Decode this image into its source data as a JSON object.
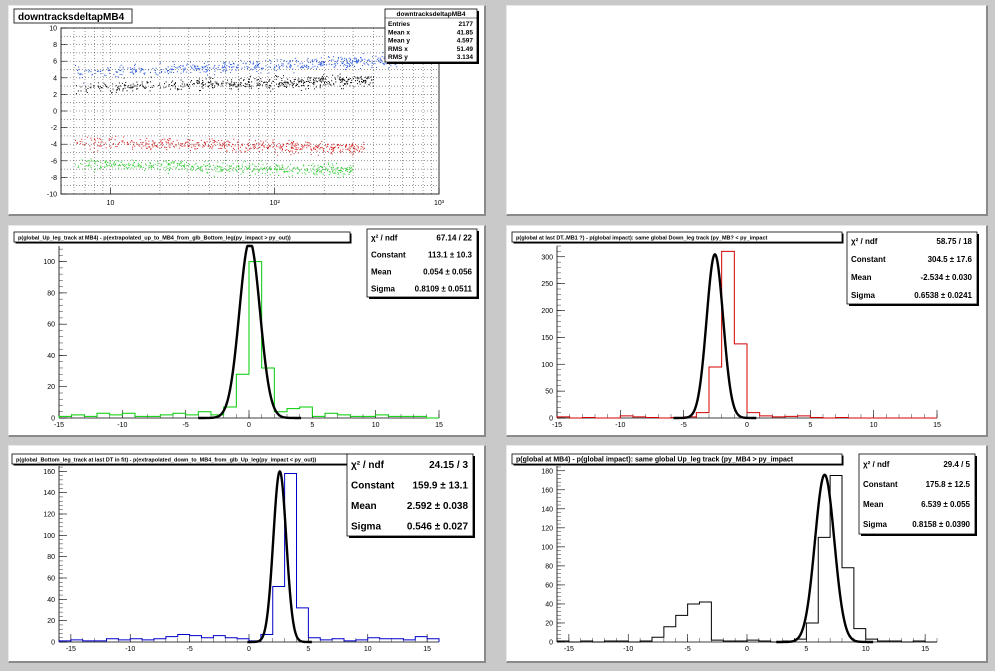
{
  "chart_data": [
    {
      "type": "scatter",
      "title": "downtracksdeltapMB4",
      "stats": {
        "name": "downtracksdeltapMB4",
        "rows": [
          [
            "Entries",
            "2177"
          ],
          [
            "Mean x",
            "41.85"
          ],
          [
            "Mean y",
            "4.597"
          ],
          [
            "RMS x",
            "51.49"
          ],
          [
            "RMS y",
            "3.134"
          ]
        ]
      },
      "x_scale": "log",
      "xlim": [
        5,
        1000
      ],
      "ylim": [
        -10,
        10
      ],
      "x_tick_labels": [
        "10",
        "10²",
        "10³"
      ],
      "y_tick_labels": [
        "10",
        "8",
        "6",
        "4",
        "2",
        "0",
        "-2",
        "-4",
        "-6",
        "-8",
        "-10"
      ],
      "grid": true,
      "series": [
        {
          "color": "#1f4fd6",
          "center_y": 4.6,
          "approx_x_range": [
            6,
            600
          ]
        },
        {
          "color": "#000000",
          "center_y": 2.8,
          "approx_x_range": [
            6,
            400
          ]
        },
        {
          "color": "#d42020",
          "center_y": -3.7,
          "approx_x_range": [
            6,
            350
          ]
        },
        {
          "color": "#2ecc2e",
          "center_y": -6.3,
          "approx_x_range": [
            6,
            300
          ]
        }
      ]
    },
    {
      "type": "empty"
    },
    {
      "type": "histogram",
      "title": "p(global_Up_leg_track at MB4)  - p(extrapolated_up_to_MB4_from_glb_Bottom_leg(py_impact > py_out))",
      "color": "#00cc00",
      "xlim": [
        -15,
        15
      ],
      "ylim": [
        0,
        110
      ],
      "x_ticks": [
        -15,
        -10,
        -5,
        0,
        5,
        10,
        15
      ],
      "y_ticks": [
        0,
        20,
        40,
        60,
        80,
        100
      ],
      "bin_width": 1,
      "bins": [
        [
          -15,
          1
        ],
        [
          -14,
          2
        ],
        [
          -13,
          1
        ],
        [
          -12,
          3
        ],
        [
          -11,
          2
        ],
        [
          -10,
          3
        ],
        [
          -9,
          1
        ],
        [
          -8,
          1
        ],
        [
          -7,
          2
        ],
        [
          -6,
          3
        ],
        [
          -5,
          2
        ],
        [
          -4,
          4
        ],
        [
          -3,
          2
        ],
        [
          -2,
          7
        ],
        [
          -1,
          28
        ],
        [
          0,
          100
        ],
        [
          1,
          32
        ],
        [
          2,
          4
        ],
        [
          3,
          6
        ],
        [
          4,
          7
        ],
        [
          5,
          1
        ],
        [
          6,
          3
        ],
        [
          7,
          2
        ],
        [
          8,
          1
        ],
        [
          9,
          1
        ],
        [
          10,
          2
        ],
        [
          11,
          1
        ],
        [
          12,
          1
        ],
        [
          13,
          1
        ],
        [
          14,
          0
        ]
      ],
      "fit": {
        "constant": 113.1,
        "mean": 0.054,
        "sigma": 0.8109
      },
      "stats": {
        "rows": [
          [
            "χ² / ndf",
            "67.14 / 22"
          ],
          [
            "Constant",
            "113.1 ± 10.3"
          ],
          [
            "Mean",
            "0.054 ± 0.056"
          ],
          [
            "Sigma",
            "0.8109 ± 0.0511"
          ]
        ]
      }
    },
    {
      "type": "histogram",
      "title": "p(global at last DT..MB1 ?)  - p(global impact): same global Down_leg track (py_MB? < py_impact",
      "color": "#d40000",
      "xlim": [
        -15,
        15
      ],
      "ylim": [
        0,
        320
      ],
      "x_ticks": [
        -15,
        -10,
        -5,
        0,
        5,
        10,
        15
      ],
      "y_ticks": [
        0,
        50,
        100,
        150,
        200,
        250,
        300
      ],
      "bin_width": 1,
      "bins": [
        [
          -15,
          2
        ],
        [
          -14,
          0
        ],
        [
          -13,
          1
        ],
        [
          -12,
          0
        ],
        [
          -11,
          0
        ],
        [
          -10,
          4
        ],
        [
          -9,
          2
        ],
        [
          -8,
          1
        ],
        [
          -7,
          0
        ],
        [
          -6,
          1
        ],
        [
          -5,
          2
        ],
        [
          -4,
          10
        ],
        [
          -3,
          95
        ],
        [
          -2,
          310
        ],
        [
          -1,
          138
        ],
        [
          0,
          10
        ],
        [
          1,
          4
        ],
        [
          2,
          2
        ],
        [
          3,
          3
        ],
        [
          4,
          4
        ],
        [
          5,
          1
        ],
        [
          6,
          0
        ],
        [
          7,
          1
        ],
        [
          8,
          0
        ],
        [
          9,
          0
        ],
        [
          10,
          0
        ],
        [
          11,
          0
        ],
        [
          12,
          0
        ],
        [
          13,
          0
        ],
        [
          14,
          0
        ]
      ],
      "fit": {
        "constant": 304.5,
        "mean": -2.534,
        "sigma": 0.6538
      },
      "stats": {
        "rows": [
          [
            "χ² / ndf",
            "58.75 / 18"
          ],
          [
            "Constant",
            "304.5 ± 17.6"
          ],
          [
            "Mean",
            "-2.534 ± 0.030"
          ],
          [
            "Sigma",
            "0.6538 ± 0.0241"
          ]
        ]
      }
    },
    {
      "type": "histogram",
      "title": "p(global_Bottom_leg_track at last DT in fit)  - p(extrapolated_down_to_MB4_from_glb_Up_leg(py_impact < py_out))",
      "color": "#0000cc",
      "xlim": [
        -16,
        16
      ],
      "ylim": [
        0,
        165
      ],
      "x_ticks": [
        -15,
        -10,
        -5,
        0,
        5,
        10,
        15
      ],
      "y_ticks": [
        0,
        20,
        40,
        60,
        80,
        100,
        120,
        140,
        160
      ],
      "bin_width": 1,
      "bins": [
        [
          -16,
          1
        ],
        [
          -15,
          2
        ],
        [
          -14,
          1
        ],
        [
          -13,
          1
        ],
        [
          -12,
          3
        ],
        [
          -11,
          2
        ],
        [
          -10,
          3
        ],
        [
          -9,
          2
        ],
        [
          -8,
          3
        ],
        [
          -7,
          5
        ],
        [
          -6,
          7
        ],
        [
          -5,
          6
        ],
        [
          -4,
          4
        ],
        [
          -3,
          6
        ],
        [
          -2,
          4
        ],
        [
          -1,
          3
        ],
        [
          0,
          1
        ],
        [
          1,
          7
        ],
        [
          2,
          52
        ],
        [
          3,
          158
        ],
        [
          4,
          32
        ],
        [
          5,
          4
        ],
        [
          6,
          2
        ],
        [
          7,
          3
        ],
        [
          8,
          1
        ],
        [
          9,
          2
        ],
        [
          10,
          4
        ],
        [
          11,
          3
        ],
        [
          12,
          3
        ],
        [
          13,
          2
        ],
        [
          14,
          5
        ],
        [
          15,
          3
        ]
      ],
      "fit": {
        "constant": 159.9,
        "mean": 2.592,
        "sigma": 0.546
      },
      "stats": {
        "rows": [
          [
            "χ² / ndf",
            "24.15 / 3"
          ],
          [
            "Constant",
            "159.9 ± 13.1"
          ],
          [
            "Mean",
            "2.592 ± 0.038"
          ],
          [
            "Sigma",
            "0.546 ± 0.027"
          ]
        ]
      }
    },
    {
      "type": "histogram",
      "title": "p(global at MB4)  - p(global impact): same global Up_leg track (py_MB4 > py_impact",
      "color": "#000000",
      "xlim": [
        -16,
        16
      ],
      "ylim": [
        0,
        185
      ],
      "x_ticks": [
        -15,
        -10,
        -5,
        0,
        5,
        10,
        15
      ],
      "y_ticks": [
        0,
        20,
        40,
        60,
        80,
        100,
        120,
        140,
        160,
        180
      ],
      "bin_width": 1,
      "bins": [
        [
          -16,
          1
        ],
        [
          -15,
          0
        ],
        [
          -14,
          1
        ],
        [
          -13,
          0
        ],
        [
          -12,
          1
        ],
        [
          -11,
          1
        ],
        [
          -10,
          0
        ],
        [
          -9,
          1
        ],
        [
          -8,
          5
        ],
        [
          -7,
          16
        ],
        [
          -6,
          28
        ],
        [
          -5,
          40
        ],
        [
          -4,
          42
        ],
        [
          -3,
          2
        ],
        [
          -2,
          1
        ],
        [
          -1,
          1
        ],
        [
          0,
          2
        ],
        [
          1,
          1
        ],
        [
          2,
          0
        ],
        [
          3,
          1
        ],
        [
          4,
          3
        ],
        [
          5,
          20
        ],
        [
          6,
          110
        ],
        [
          7,
          175
        ],
        [
          8,
          78
        ],
        [
          9,
          14
        ],
        [
          10,
          3
        ],
        [
          11,
          1
        ],
        [
          12,
          1
        ],
        [
          13,
          0
        ],
        [
          14,
          1
        ],
        [
          15,
          0
        ]
      ],
      "fit": {
        "constant": 175.8,
        "mean": 6.539,
        "sigma": 0.8158
      },
      "stats": {
        "rows": [
          [
            "χ² / ndf",
            "29.4 / 5"
          ],
          [
            "Constant",
            "175.8 ± 12.5"
          ],
          [
            "Mean",
            "6.539 ± 0.055"
          ],
          [
            "Sigma",
            "0.8158 ± 0.0390"
          ]
        ]
      }
    }
  ]
}
